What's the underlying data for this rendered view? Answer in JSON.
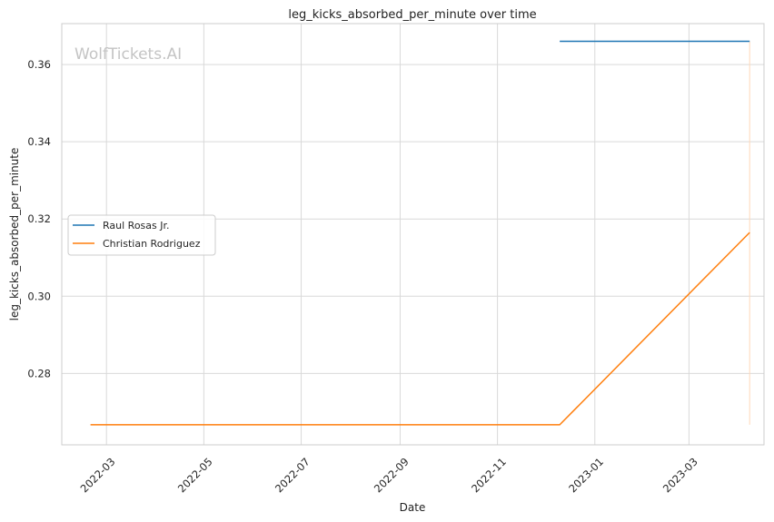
{
  "chart_data": {
    "type": "line",
    "title": "leg_kicks_absorbed_per_minute over time",
    "xlabel": "Date",
    "ylabel": "leg_kicks_absorbed_per_minute",
    "watermark": "WolfTickets.AI",
    "xlim": [
      "2022-02-01",
      "2023-04-17"
    ],
    "ylim": [
      0.2615,
      0.3706
    ],
    "x_ticks": [
      "2022-03-01",
      "2022-05-01",
      "2022-07-01",
      "2022-09-01",
      "2022-11-01",
      "2023-01-01",
      "2023-03-01"
    ],
    "x_tick_labels": [
      "2022-03",
      "2022-05",
      "2022-07",
      "2022-09",
      "2022-11",
      "2023-01",
      "2023-03"
    ],
    "y_ticks": [
      0.28,
      0.3,
      0.32,
      0.34,
      0.36
    ],
    "y_tick_labels": [
      "0.28",
      "0.30",
      "0.32",
      "0.34",
      "0.36"
    ],
    "grid": true,
    "legend_position": "center-left",
    "series": [
      {
        "name": "Raul Rosas Jr.",
        "color": "#1f77b4",
        "points": [
          {
            "x": "2022-12-10",
            "y": 0.366
          },
          {
            "x": "2023-04-08",
            "y": 0.366
          }
        ]
      },
      {
        "name": "Christian Rodriguez",
        "color": "#ff7f0e",
        "points": [
          {
            "x": "2022-02-19",
            "y": 0.2667
          },
          {
            "x": "2022-12-10",
            "y": 0.2667
          },
          {
            "x": "2023-04-08",
            "y": 0.3165
          }
        ]
      }
    ],
    "vertical_marker": {
      "x": "2023-04-08",
      "y_range": [
        0.2667,
        0.366
      ],
      "color": "#ffd8b8"
    }
  }
}
